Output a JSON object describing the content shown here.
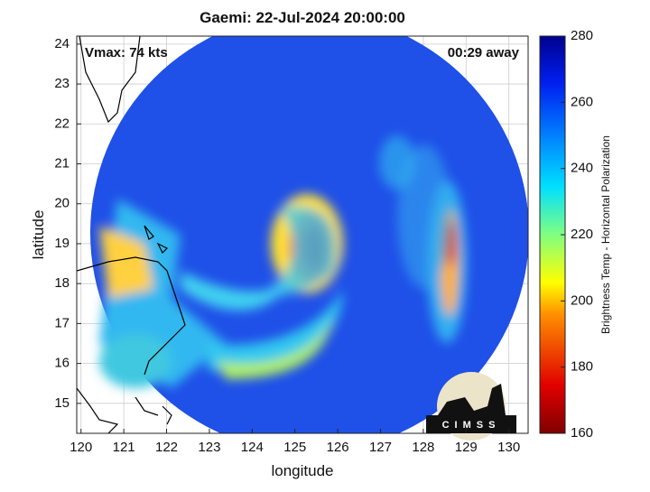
{
  "title": "Gaemi: 22-Jul-2024 20:00:00",
  "annotations": {
    "vmax": "Vmax: 74 kts",
    "time_away": "00:29 away"
  },
  "map": {
    "xlabel": "longitude",
    "ylabel": "latitude",
    "xlim": [
      119.9,
      130.45
    ],
    "ylim": [
      14.25,
      24.2
    ],
    "xticks": [
      120,
      121,
      122,
      123,
      124,
      125,
      126,
      127,
      128,
      129,
      130
    ],
    "yticks": [
      15,
      16,
      17,
      18,
      19,
      20,
      21,
      22,
      23,
      24
    ],
    "grid": true
  },
  "colorbar": {
    "label": "Brightness Temp - Horizontal Polarization",
    "lim": [
      160,
      280
    ],
    "ticks": [
      160,
      180,
      200,
      220,
      240,
      260,
      280
    ]
  },
  "logo": "CIMSS"
}
